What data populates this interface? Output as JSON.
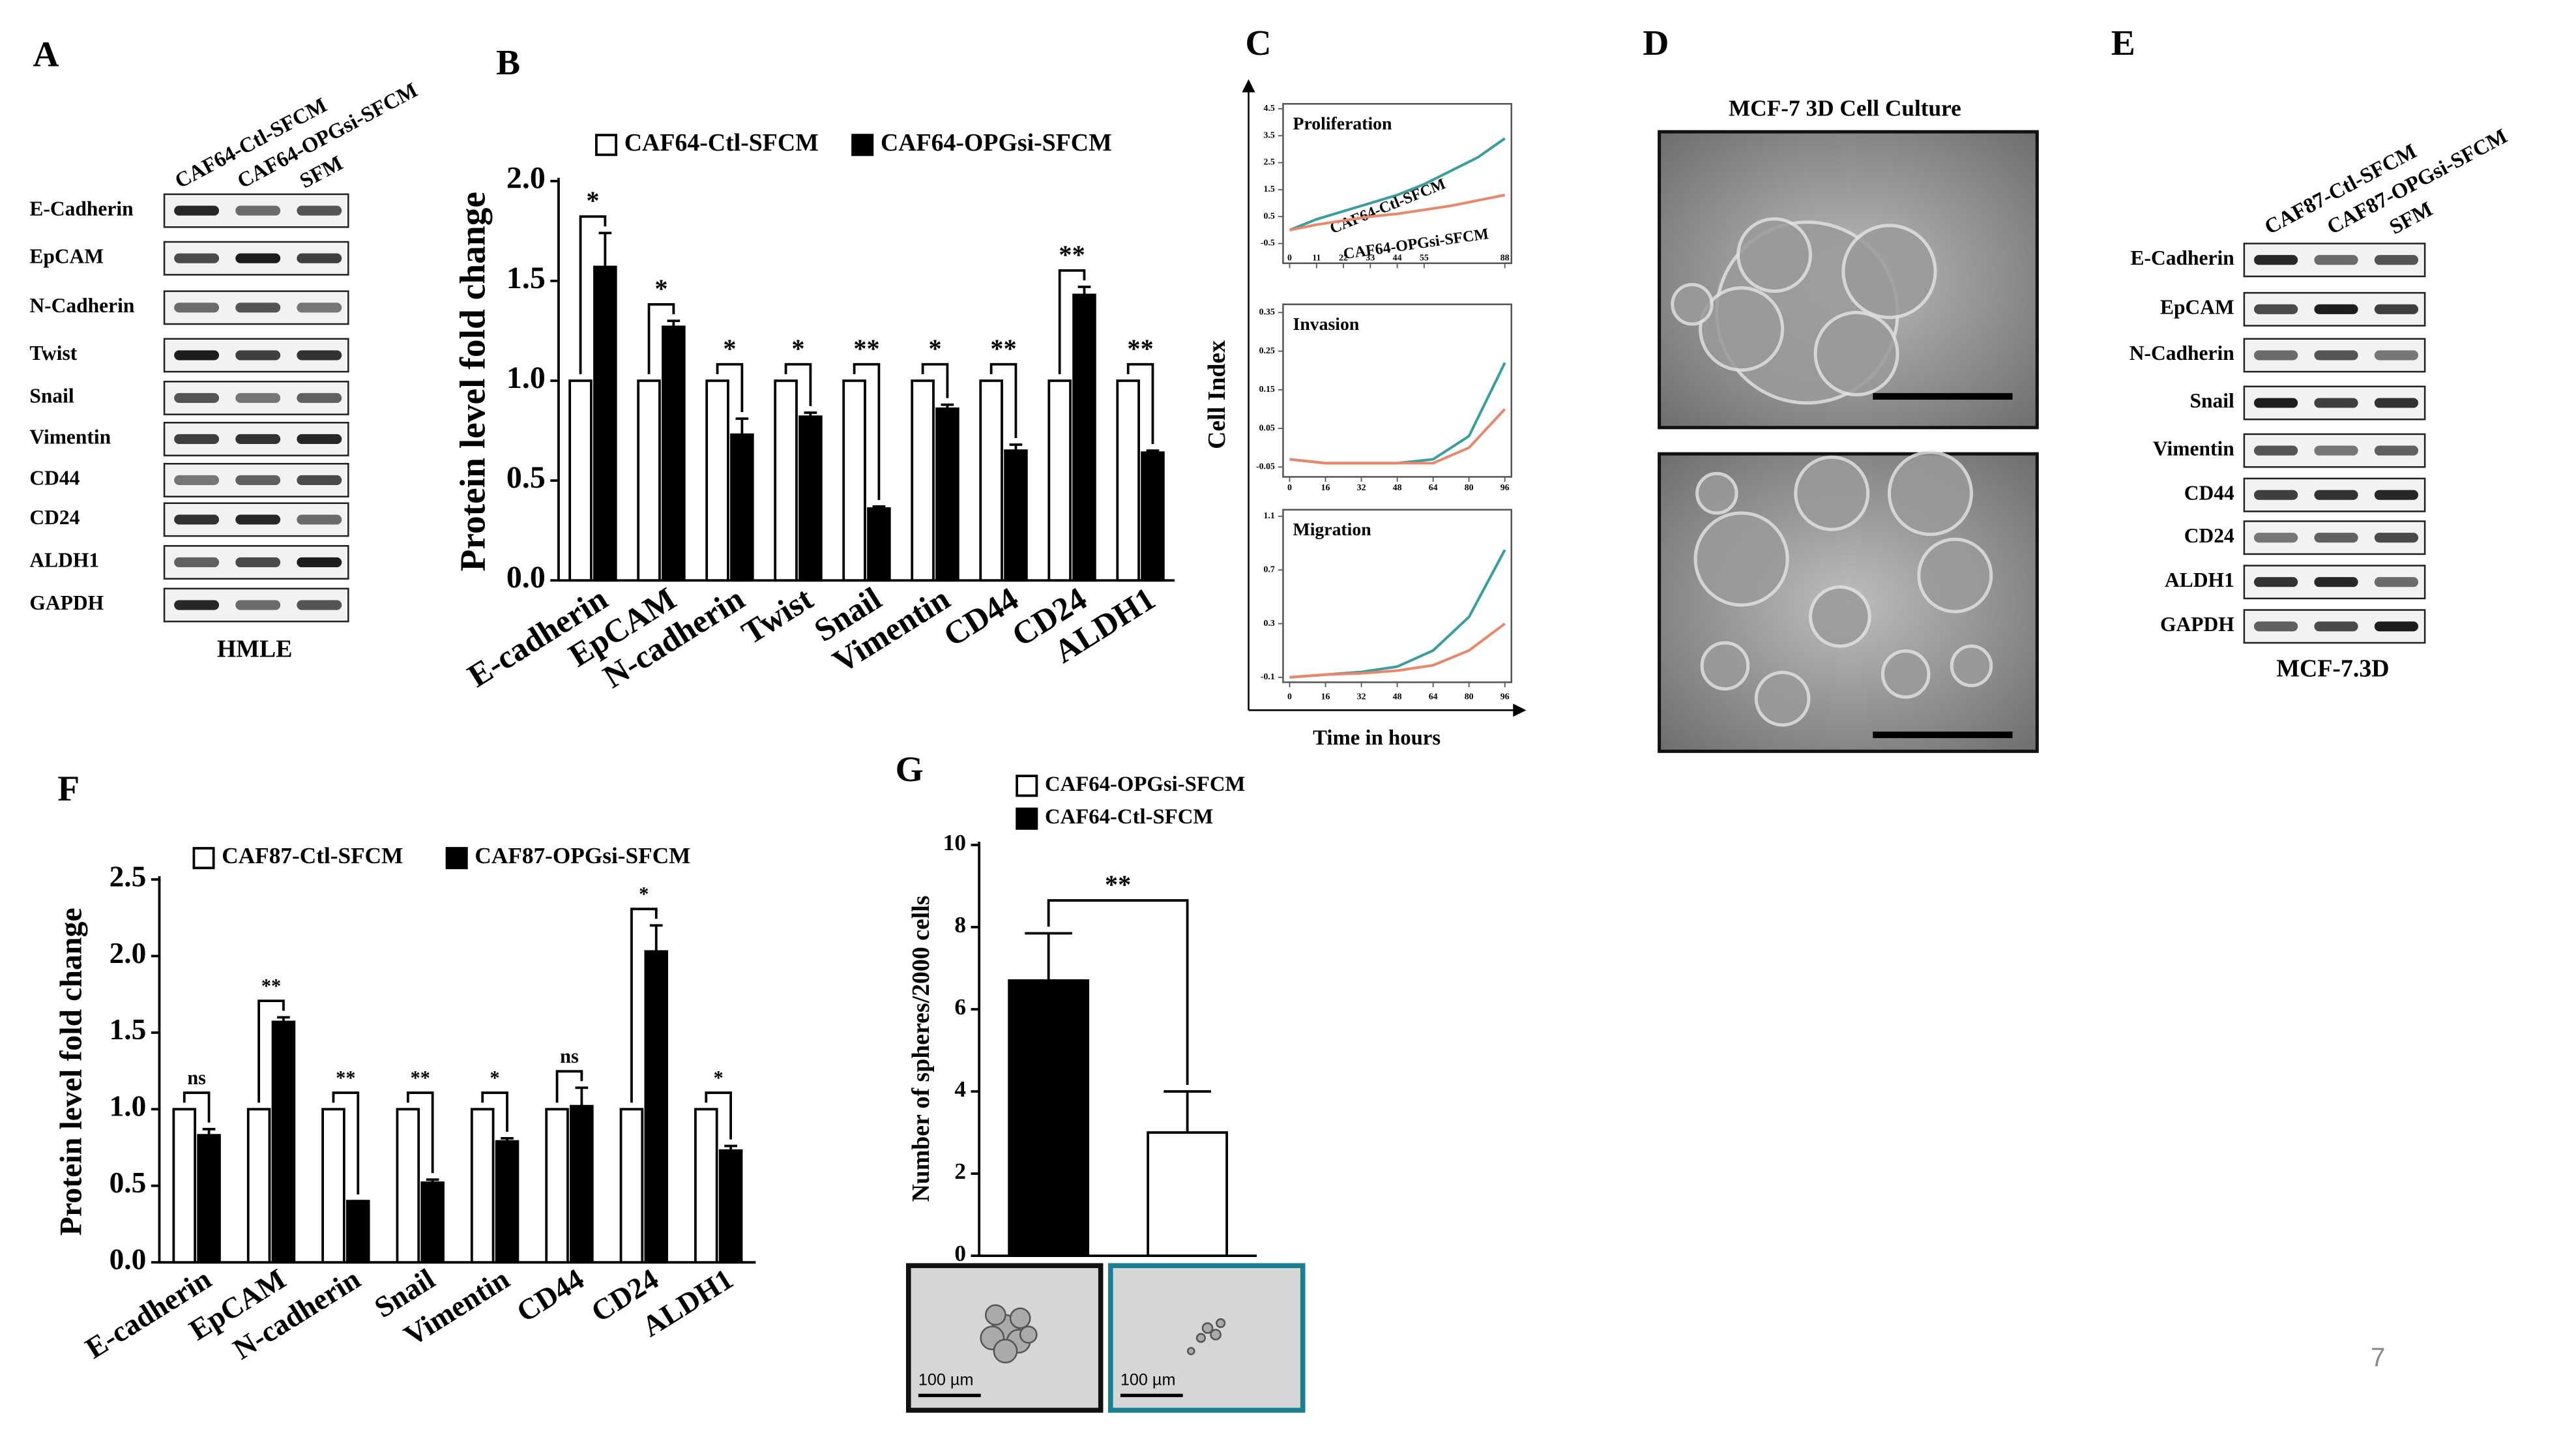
{
  "page_number": "7",
  "panel_labels": [
    "A",
    "B",
    "C",
    "D",
    "E",
    "F",
    "G"
  ],
  "blots": [
    {
      "lanes": [
        "CAF64-Ctl-SFCM",
        "CAF64-OPGsi-SFCM",
        "SFM"
      ],
      "rows": [
        "E-Cadherin",
        "EpCAM",
        "N-Cadherin",
        "Twist",
        "Snail",
        "Vimentin",
        "CD44",
        "CD24",
        "ALDH1",
        "GAPDH"
      ],
      "caption": "HMLE"
    },
    {
      "lanes": [
        "CAF87-Ctl-SFCM",
        "CAF87-OPGsi-SFCM",
        "SFM"
      ],
      "rows": [
        "E-Cadherin",
        "EpCAM",
        "N-Cadherin",
        "Snail",
        "Vimentin",
        "CD44",
        "CD24",
        "ALDH1",
        "GAPDH"
      ],
      "caption": "MCF-7.3D"
    }
  ],
  "panel_C": {
    "ylabel": "Cell Index",
    "xlabel": "Time in hours"
  },
  "panel_D": {
    "title": "MCF-7  3D Cell Culture"
  },
  "panel_G_images": {
    "scale_labels": [
      "100 µm",
      "100 µm"
    ]
  },
  "chart_data": [
    {
      "type": "bar",
      "ylabel": "Protein level fold change",
      "categories": [
        "E-cadherin",
        "EpCAM",
        "N-cadherin",
        "Twist",
        "Snail",
        "Vimentin",
        "CD44",
        "CD24",
        "ALDH1"
      ],
      "series": [
        {
          "name": "CAF64-Ctl-SFCM",
          "color": "#ffffff",
          "values": [
            1,
            1,
            1,
            1,
            1,
            1,
            1,
            1,
            1
          ]
        },
        {
          "name": "CAF64-OPGsi-SFCM",
          "color": "#000000",
          "values": [
            1.57,
            1.27,
            0.73,
            0.82,
            0.36,
            0.86,
            0.65,
            1.43,
            0.64
          ],
          "errors": [
            0.17,
            0.03,
            0.08,
            0.02,
            0.01,
            0.02,
            0.03,
            0.04,
            0.01
          ]
        }
      ],
      "annotations": [
        "*",
        "*",
        "*",
        "*",
        "**",
        "*",
        "**",
        "**",
        "**"
      ],
      "ylim": [
        0,
        2
      ],
      "yticks": [
        {
          "value": 0,
          "label": "0.0"
        },
        {
          "value": 0.5,
          "label": "0.5"
        },
        {
          "value": 1,
          "label": "1.0"
        },
        {
          "value": 1.5,
          "label": "1.5"
        },
        {
          "value": 2,
          "label": "2.0"
        }
      ]
    },
    {
      "type": "line",
      "title": "Proliferation",
      "x": [
        0,
        11,
        22,
        33,
        44,
        55,
        66,
        77,
        88
      ],
      "series": [
        {
          "name": "CAF64-Ctl-SFCM",
          "color": "#3a9e9e",
          "values": [
            0,
            0.4,
            0.7,
            1.0,
            1.3,
            1.7,
            2.2,
            2.7,
            3.4
          ]
        },
        {
          "name": "CAF64-OPGsi-SFCM",
          "color": "#e8876a",
          "values": [
            0,
            0.2,
            0.35,
            0.5,
            0.6,
            0.75,
            0.9,
            1.1,
            1.3
          ]
        }
      ],
      "xlim": [
        0,
        88
      ],
      "xticks": [
        0,
        11,
        22,
        33,
        44,
        55,
        88
      ],
      "ylim": [
        -0.5,
        4.5
      ],
      "yticks": [
        -0.5,
        0.5,
        1.5,
        2.5,
        3.5,
        4.5
      ]
    },
    {
      "type": "line",
      "title": "Invasion",
      "x": [
        0,
        16,
        32,
        48,
        64,
        80,
        96
      ],
      "series": [
        {
          "color": "#3a9e9e",
          "values": [
            -0.03,
            -0.04,
            -0.04,
            -0.04,
            -0.03,
            0.03,
            0.22
          ]
        },
        {
          "color": "#e8876a",
          "values": [
            -0.03,
            -0.04,
            -0.04,
            -0.04,
            -0.04,
            0.0,
            0.1
          ]
        }
      ],
      "xlim": [
        0,
        96
      ],
      "xticks": [
        0,
        16,
        32,
        48,
        64,
        80,
        96
      ],
      "ylim": [
        -0.05,
        0.35
      ],
      "yticks": [
        -0.05,
        0.05,
        0.15,
        0.25,
        0.35
      ]
    },
    {
      "type": "line",
      "title": "Migration",
      "x": [
        0,
        16,
        32,
        48,
        64,
        80,
        96
      ],
      "series": [
        {
          "color": "#3a9e9e",
          "values": [
            -0.1,
            -0.08,
            -0.06,
            -0.02,
            0.1,
            0.35,
            0.85
          ]
        },
        {
          "color": "#e8876a",
          "values": [
            -0.1,
            -0.08,
            -0.07,
            -0.05,
            -0.01,
            0.1,
            0.3
          ]
        }
      ],
      "xlim": [
        0,
        96
      ],
      "xticks": [
        0,
        16,
        32,
        48,
        64,
        80,
        96
      ],
      "ylim": [
        -0.1,
        1.1
      ],
      "yticks": [
        -0.1,
        0.3,
        0.7,
        1.1
      ]
    },
    {
      "type": "bar",
      "ylabel": "Protein level fold change",
      "categories": [
        "E-cadherin",
        "EpCAM",
        "N-cadherin",
        "Snail",
        "Vimentin",
        "CD44",
        "CD24",
        "ALDH1"
      ],
      "series": [
        {
          "name": "CAF87-Ctl-SFCM",
          "color": "#ffffff",
          "values": [
            1,
            1,
            1,
            1,
            1,
            1,
            1,
            1
          ]
        },
        {
          "name": "CAF87-OPGsi-SFCM",
          "color": "#000000",
          "values": [
            0.83,
            1.57,
            0.4,
            0.52,
            0.79,
            1.02,
            2.03,
            0.73
          ],
          "errors": [
            0.04,
            0.03,
            0,
            0.02,
            0.02,
            0.12,
            0.17,
            0.03
          ]
        }
      ],
      "annotations": [
        "ns",
        "**",
        "**",
        "**",
        "*",
        "ns",
        "*",
        "*"
      ],
      "ylim": [
        0,
        2.5
      ],
      "yticks": [
        {
          "value": 0,
          "label": "0.0"
        },
        {
          "value": 0.5,
          "label": "0.5"
        },
        {
          "value": 1,
          "label": "1.0"
        },
        {
          "value": 1.5,
          "label": "1.5"
        },
        {
          "value": 2,
          "label": "2.0"
        },
        {
          "value": 2.5,
          "label": "2.5"
        }
      ]
    },
    {
      "type": "bar",
      "ylabel": "Number of spheres/2000 cells",
      "categories": [
        null,
        null
      ],
      "series": [
        {
          "name": "CAF64-OPGsi-SFCM",
          "color": "#ffffff",
          "values": [
            null,
            3.0
          ],
          "errors": [
            null,
            1.0
          ]
        },
        {
          "name": "CAF64-Ctl-SFCM",
          "color": "#000000",
          "values": [
            6.7,
            null
          ],
          "errors": [
            1.15,
            null
          ]
        }
      ],
      "annotations": [
        "**"
      ],
      "ylim": [
        0,
        10
      ],
      "yticks": [
        0,
        2,
        4,
        6,
        8,
        10
      ]
    }
  ]
}
